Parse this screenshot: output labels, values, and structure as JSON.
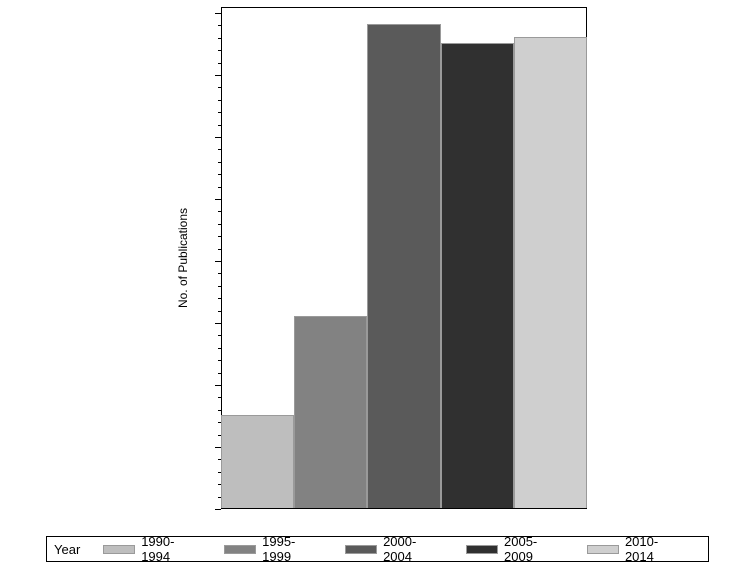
{
  "chart_data": {
    "type": "bar",
    "title": "",
    "xlabel": "",
    "ylabel": "No. of Publications",
    "ylim": [
      0,
      80
    ],
    "yticks": [
      0,
      10,
      20,
      30,
      40,
      50,
      60,
      70,
      80
    ],
    "grid": false,
    "legend_position": "bottom",
    "legend_title": "Year",
    "categories": [
      "1990-1994",
      "1995-1999",
      "2000-2004",
      "2005-2009",
      "2010-2014"
    ],
    "values": [
      15,
      31,
      78,
      75,
      76
    ],
    "colors": [
      "#bebebe",
      "#828282",
      "#5a5a5a",
      "#303030",
      "#cfcfcf"
    ]
  }
}
